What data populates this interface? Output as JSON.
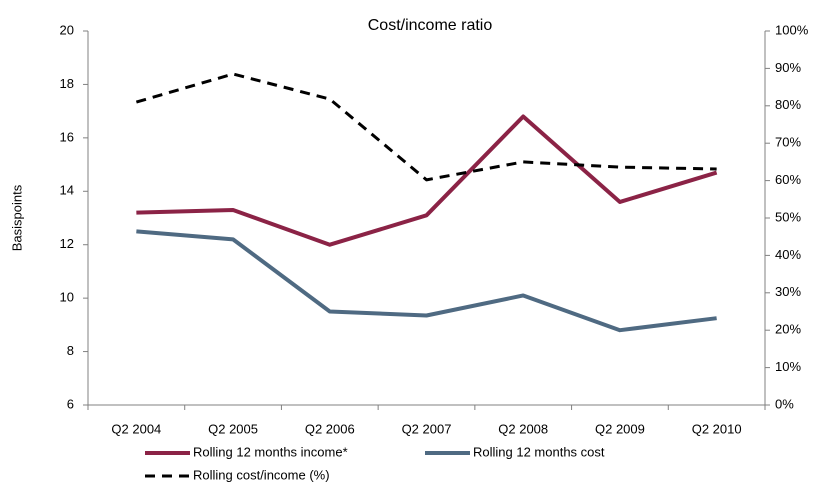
{
  "chart_data": {
    "type": "line",
    "title": "Cost/income ratio",
    "y_label": "Basispoints",
    "categories": [
      "Q2 2004",
      "Q2 2005",
      "Q2 2006",
      "Q2 2007",
      "Q2 2008",
      "Q2 2009",
      "Q2 2010"
    ],
    "series": [
      {
        "name": "Rolling 12 months income*",
        "color": "#8b2346",
        "values": [
          13.2,
          13.3,
          12.0,
          13.1,
          16.8,
          13.6,
          14.7
        ]
      },
      {
        "name": "Rolling 12 months cost",
        "color": "#4f6a82",
        "values": [
          12.5,
          12.2,
          9.5,
          9.35,
          10.1,
          8.8,
          9.25
        ]
      },
      {
        "name": "Rolling cost/income (%)",
        "color": "#000000",
        "dashed": true,
        "axis": "y2",
        "values": [
          81,
          88.5,
          81.8,
          60.2,
          65,
          63.6,
          63.1
        ]
      }
    ],
    "ylim": [
      6,
      20
    ],
    "yticks": [
      6,
      8,
      10,
      12,
      14,
      16,
      18,
      20
    ],
    "y2lim": [
      0,
      100
    ],
    "y2ticks": [
      {
        "value": 0,
        "label": "0%"
      },
      {
        "value": 10,
        "label": "10%"
      },
      {
        "value": 20,
        "label": "20%"
      },
      {
        "value": 30,
        "label": "30%"
      },
      {
        "value": 40,
        "label": "40%"
      },
      {
        "value": 50,
        "label": "50%"
      },
      {
        "value": 60,
        "label": "60%"
      },
      {
        "value": 70,
        "label": "70%"
      },
      {
        "value": 80,
        "label": "80%"
      },
      {
        "value": 90,
        "label": "90%"
      },
      {
        "value": 100,
        "label": "100%"
      }
    ],
    "grid": false
  }
}
